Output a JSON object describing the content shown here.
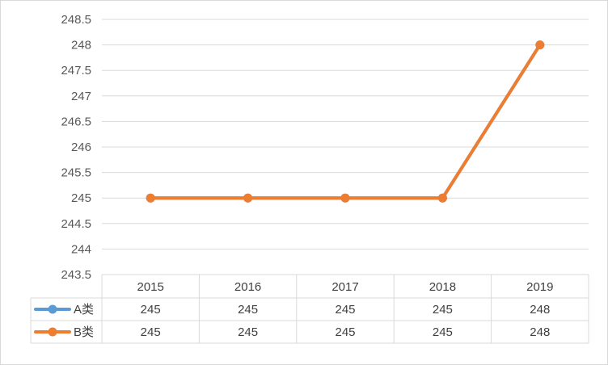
{
  "chart_data": {
    "type": "line",
    "categories": [
      "2015",
      "2016",
      "2017",
      "2018",
      "2019"
    ],
    "series": [
      {
        "name": "A类",
        "values": [
          245,
          245,
          245,
          245,
          248
        ],
        "color": "#5b9bd5"
      },
      {
        "name": "B类",
        "values": [
          245,
          245,
          245,
          245,
          248
        ],
        "color": "#ed7d31"
      }
    ],
    "ylim": [
      243.5,
      248.5
    ],
    "yticks": [
      "243.5",
      "244",
      "244.5",
      "245",
      "245.5",
      "246",
      "246.5",
      "247",
      "247.5",
      "248",
      "248.5"
    ],
    "grid": true,
    "legend": "data-table",
    "data_table": true
  }
}
